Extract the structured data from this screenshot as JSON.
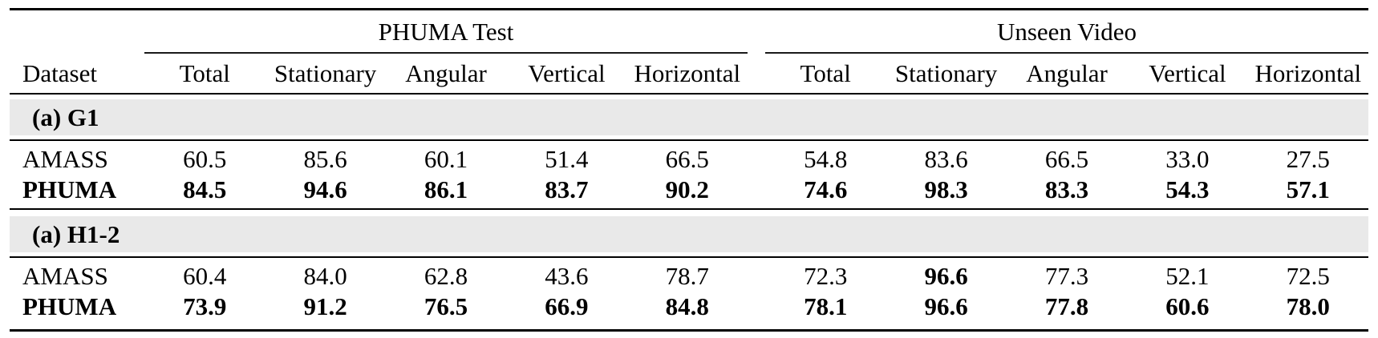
{
  "table": {
    "dataset_header": "Dataset",
    "col_groups": [
      {
        "label": "PHUMA Test"
      },
      {
        "label": "Unseen Video"
      }
    ],
    "sub_headers": [
      "Total",
      "Stationary",
      "Angular",
      "Vertical",
      "Horizontal"
    ],
    "sections": [
      {
        "title": "(a) G1",
        "rows": [
          {
            "dataset": "AMASS",
            "bold_label": false,
            "values": [
              "60.5",
              "85.6",
              "60.1",
              "51.4",
              "66.5",
              "54.8",
              "83.6",
              "66.5",
              "33.0",
              "27.5"
            ],
            "bold": [
              false,
              false,
              false,
              false,
              false,
              false,
              false,
              false,
              false,
              false
            ]
          },
          {
            "dataset": "PHUMA",
            "bold_label": true,
            "values": [
              "84.5",
              "94.6",
              "86.1",
              "83.7",
              "90.2",
              "74.6",
              "98.3",
              "83.3",
              "54.3",
              "57.1"
            ],
            "bold": [
              true,
              true,
              true,
              true,
              true,
              true,
              true,
              true,
              true,
              true
            ]
          }
        ]
      },
      {
        "title": "(a) H1-2",
        "rows": [
          {
            "dataset": "AMASS",
            "bold_label": false,
            "values": [
              "60.4",
              "84.0",
              "62.8",
              "43.6",
              "78.7",
              "72.3",
              "96.6",
              "77.3",
              "52.1",
              "72.5"
            ],
            "bold": [
              false,
              false,
              false,
              false,
              false,
              false,
              true,
              false,
              false,
              false
            ]
          },
          {
            "dataset": "PHUMA",
            "bold_label": true,
            "values": [
              "73.9",
              "91.2",
              "76.5",
              "66.9",
              "84.8",
              "78.1",
              "96.6",
              "77.8",
              "60.6",
              "78.0"
            ],
            "bold": [
              true,
              true,
              true,
              true,
              true,
              true,
              true,
              true,
              true,
              true
            ]
          }
        ]
      }
    ],
    "colors": {
      "section_band_bg": "#e9e9e9",
      "rule": "#000000",
      "text": "#000000"
    }
  }
}
